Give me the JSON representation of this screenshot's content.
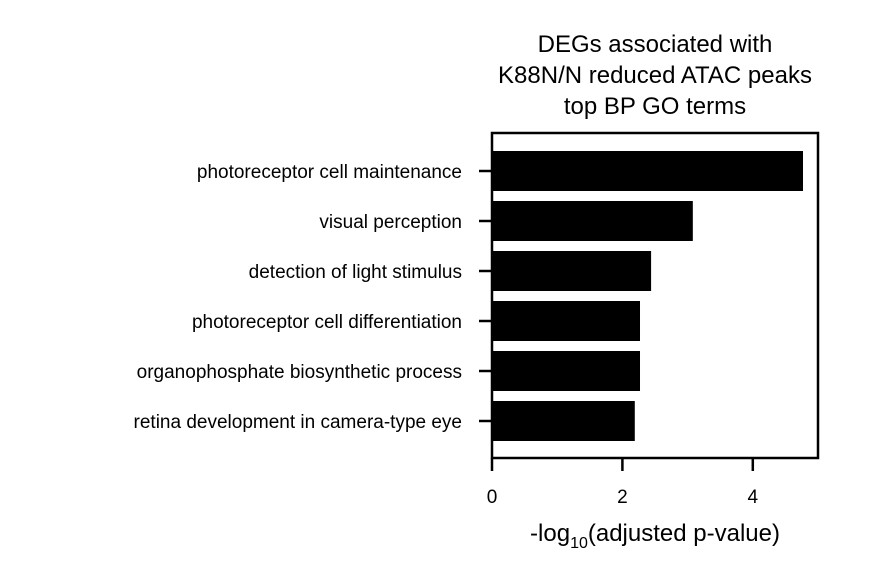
{
  "chart_data": {
    "type": "bar",
    "orientation": "horizontal",
    "title_lines": [
      "DEGs associated with",
      "K88N/N reduced ATAC peaks",
      "top BP GO terms"
    ],
    "categories": [
      "photoreceptor cell maintenance",
      "visual perception",
      "detection of light stimulus",
      "photoreceptor cell differentiation",
      "organophosphate biosynthetic process",
      "retina development in camera-type eye"
    ],
    "values": [
      4.77,
      3.08,
      2.44,
      2.27,
      2.27,
      2.19
    ],
    "xlabel_prefix": "-log",
    "xlabel_subscript": "10",
    "xlabel_suffix": "(adjusted p-value)",
    "xticks": [
      0,
      2,
      4
    ],
    "xlim": [
      0,
      5
    ],
    "bar_color": "#000000",
    "grid": false
  }
}
